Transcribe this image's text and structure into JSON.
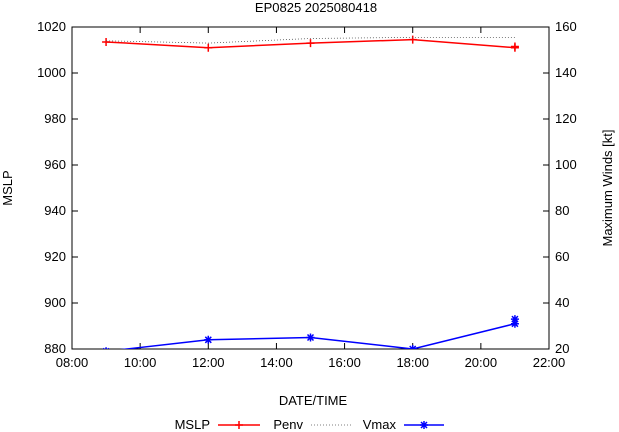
{
  "chart_data": {
    "type": "line",
    "title": "EP0825 2025080418",
    "xlabel": "DATE/TIME",
    "ylabel": "MSLP",
    "y2label": "Maximum Winds [kt]",
    "xlim": [
      8,
      22
    ],
    "ylim": [
      880,
      1020
    ],
    "y2lim": [
      20,
      160
    ],
    "x_ticks": [
      8,
      10,
      12,
      14,
      16,
      18,
      20,
      22
    ],
    "x_tick_labels": [
      "08:00",
      "10:00",
      "12:00",
      "14:00",
      "16:00",
      "18:00",
      "20:00",
      "22:00"
    ],
    "y_ticks": [
      880,
      900,
      920,
      940,
      960,
      980,
      1000,
      1020
    ],
    "y_tick_labels": [
      "880",
      "900",
      "920",
      "940",
      "960",
      "980",
      "1000",
      "1020"
    ],
    "y2_ticks": [
      20,
      40,
      60,
      80,
      100,
      120,
      140,
      160
    ],
    "y2_tick_labels": [
      "20",
      "40",
      "60",
      "80",
      "100",
      "120",
      "140",
      "160"
    ],
    "grid": false,
    "legend_position": "bottom",
    "series": [
      {
        "name": "MSLP",
        "axis": "left",
        "style": "red line with plus markers",
        "color": "#ff0000",
        "x": [
          9,
          12,
          15,
          18,
          21,
          21
        ],
        "values": [
          1013.5,
          1011,
          1013,
          1014.5,
          1011,
          1011.5
        ]
      },
      {
        "name": "Penv",
        "axis": "left",
        "style": "dotted line",
        "color": "#555555",
        "x": [
          9,
          12,
          15,
          18,
          21
        ],
        "values": [
          1014,
          1013,
          1015,
          1015.5,
          1015.5
        ]
      },
      {
        "name": "Vmax",
        "axis": "right",
        "style": "blue line with star markers",
        "color": "#0000ff",
        "x": [
          9,
          12,
          15,
          18,
          21,
          21
        ],
        "values": [
          19,
          24,
          25,
          20,
          31,
          33
        ]
      }
    ]
  }
}
